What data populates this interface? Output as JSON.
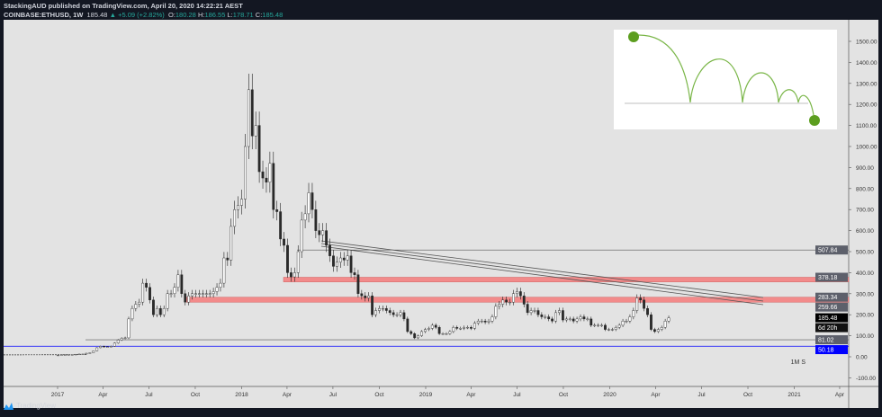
{
  "header": {
    "line1": "StackingAUD published on TradingView.com, April 20, 2020 14:22:21 AEST",
    "symbol": "COINBASE:ETHUSD, 1W",
    "last": "185.48",
    "change": "+5.09 (+2.82%)",
    "o_label": "O:",
    "o": "180.28",
    "h_label": "H:",
    "h": "186.55",
    "l_label": "L:",
    "l": "178.71",
    "c_label": "C:",
    "c": "185.48"
  },
  "footer": {
    "brand": "TradingView"
  },
  "colors": {
    "background": "#e3e3e3",
    "frame": "#131722",
    "up": "#ffffff",
    "down": "#2a2a2a",
    "zone": "#f28b8b",
    "inset_green": "#6aaa2a",
    "blue_label": "#0000ff"
  },
  "chart_data": {
    "type": "candlestick",
    "timeframe": "1W",
    "ylim": [
      -100,
      1550
    ],
    "yticks": [
      "1500.00",
      "1400.00",
      "1300.00",
      "1200.00",
      "1100.00",
      "1000.00",
      "900.00",
      "800.00",
      "700.00",
      "600.00",
      "500.00",
      "400.00",
      "300.00",
      "200.00",
      "100.00",
      "0.00",
      "-100.00"
    ],
    "xticks": [
      "2017",
      "Apr",
      "Jul",
      "Oct",
      "2018",
      "Apr",
      "Jul",
      "Oct",
      "2019",
      "Apr",
      "Jul",
      "Oct",
      "2020",
      "Apr",
      "Jul",
      "Oct",
      "2021",
      "Apr"
    ],
    "start_week": "2017-01-02",
    "weekly_close": [
      8,
      10,
      10,
      11,
      11,
      12,
      13,
      13,
      17,
      19,
      28,
      43,
      50,
      48,
      48,
      50,
      65,
      80,
      88,
      90,
      180,
      230,
      250,
      260,
      350,
      330,
      270,
      200,
      230,
      200,
      230,
      300,
      300,
      330,
      390,
      300,
      260,
      290,
      300,
      300,
      300,
      300,
      300,
      300,
      310,
      330,
      350,
      470,
      460,
      620,
      700,
      720,
      750,
      1000,
      1270,
      1050,
      1100,
      880,
      850,
      830,
      920,
      700,
      690,
      560,
      530,
      400,
      380,
      400,
      500,
      650,
      680,
      780,
      700,
      600,
      580,
      600,
      530,
      480,
      430,
      450,
      470,
      460,
      480,
      400,
      390,
      300,
      290,
      280,
      290,
      200,
      220,
      230,
      230,
      220,
      210,
      200,
      200,
      210,
      180,
      120,
      110,
      90,
      100,
      120,
      130,
      135,
      150,
      140,
      110,
      110,
      110,
      120,
      140,
      135,
      135,
      140,
      140,
      135,
      160,
      170,
      170,
      165,
      170,
      190,
      240,
      250,
      270,
      260,
      260,
      300,
      310,
      290,
      250,
      210,
      220,
      220,
      200,
      190,
      190,
      180,
      170,
      210,
      220,
      175,
      180,
      180,
      170,
      180,
      190,
      180,
      180,
      150,
      150,
      150,
      150,
      130,
      130,
      130,
      140,
      150,
      170,
      170,
      190,
      220,
      280,
      270,
      230,
      200,
      130,
      120,
      130,
      140,
      170,
      185
    ],
    "horizontal_levels": [
      {
        "value": 507.84,
        "label": "507.84",
        "kind": "line"
      },
      {
        "value": 378.18,
        "label": "378.18",
        "kind": "zone"
      },
      {
        "value": 283.34,
        "label": "283.34",
        "kind": "zone"
      },
      {
        "value": 259.66,
        "label": "259.66",
        "kind": "zone-bottom"
      },
      {
        "value": 81.02,
        "label": "81.02",
        "kind": "line"
      },
      {
        "value": 50.18,
        "label": "50.18",
        "kind": "line"
      }
    ],
    "last_price_label": "185.48",
    "countdown_label": "6d 20h",
    "interval_marker": "1M S"
  }
}
